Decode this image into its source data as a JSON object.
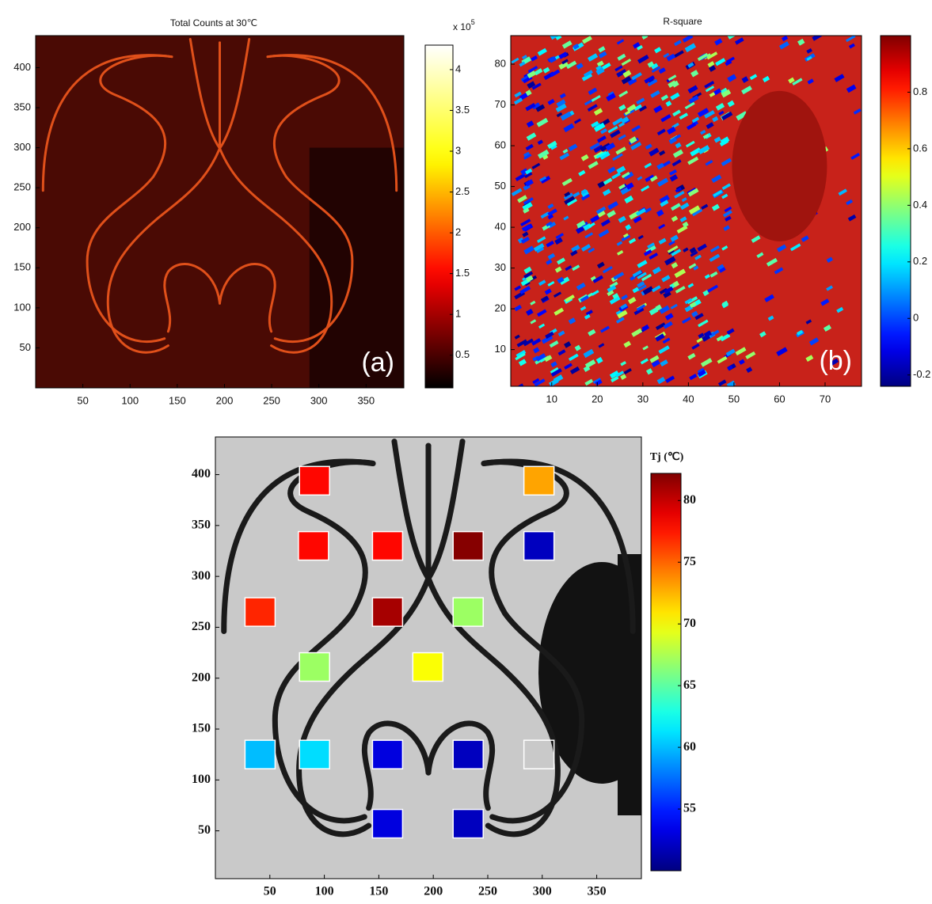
{
  "chart_data": [
    {
      "type": "heatmap",
      "title": "Total Counts at 30℃",
      "annotation": "(a)",
      "colormap": "hot",
      "colorbar_scale": "x 10",
      "colorbar_scale_exponent": "5",
      "xlim": [
        0,
        390
      ],
      "xticks": [
        50,
        100,
        150,
        200,
        250,
        300,
        350
      ],
      "ylim": [
        0,
        440
      ],
      "yticks": [
        50,
        100,
        150,
        200,
        250,
        300,
        350,
        400
      ],
      "clim": [
        0.1,
        4.3
      ],
      "cticks": [
        0.5,
        1,
        1.5,
        2,
        2.5,
        3,
        3.5,
        4
      ]
    },
    {
      "type": "heatmap",
      "title": "R-square",
      "annotation": "(b)",
      "colormap": "jet",
      "xlim": [
        1,
        78
      ],
      "xticks": [
        10,
        20,
        30,
        40,
        50,
        60,
        70
      ],
      "ylim": [
        1,
        87
      ],
      "yticks": [
        10,
        20,
        30,
        40,
        50,
        60,
        70,
        80
      ],
      "clim": [
        -0.24,
        1
      ],
      "cticks": [
        -0.2,
        0,
        0.2,
        0.4,
        0.6,
        0.8
      ]
    },
    {
      "type": "scatter",
      "colorbar_label": "Tj (℃)",
      "marker": "square",
      "colormap": "jet",
      "xlim": [
        0,
        391
      ],
      "xticks": [
        50,
        100,
        150,
        200,
        250,
        300,
        350
      ],
      "ylim": [
        3,
        437
      ],
      "yticks": [
        50,
        100,
        150,
        200,
        250,
        300,
        350,
        400
      ],
      "clim": [
        50,
        82.2
      ],
      "cticks": [
        55,
        60,
        65,
        70,
        75,
        80
      ],
      "x": [
        91,
        297,
        90,
        158,
        232,
        297,
        41,
        158,
        232,
        91,
        195,
        41,
        91,
        158,
        232,
        297,
        158,
        232
      ],
      "y": [
        394,
        394,
        330,
        330,
        330,
        330,
        265,
        265,
        265,
        211,
        211,
        125,
        125,
        125,
        125,
        125,
        57,
        57
      ],
      "values": [
        78,
        73,
        78,
        78,
        82,
        52,
        77,
        81,
        67,
        67,
        70,
        60,
        61,
        53,
        52,
        null,
        53,
        52
      ]
    }
  ]
}
